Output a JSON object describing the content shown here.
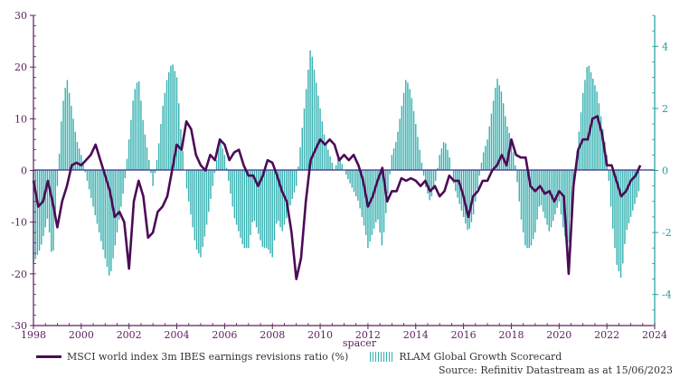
{
  "chart_data": {
    "type": "line+bar",
    "xlabel": "spacer",
    "x_ticks": [
      "1998",
      "2000",
      "2002",
      "2004",
      "2006",
      "2008",
      "2010",
      "2012",
      "2014",
      "2016",
      "2018",
      "2020",
      "2022",
      "2024"
    ],
    "x_range": [
      1998.0,
      2024.0
    ],
    "left_axis": {
      "range": [
        -30,
        30
      ],
      "ticks": [
        "30",
        "20",
        "10",
        "0",
        "-10",
        "-20",
        "-30"
      ]
    },
    "right_axis": {
      "range": [
        -5,
        5
      ],
      "ticks": [
        "4",
        "2",
        "0",
        "-2",
        "-4"
      ]
    },
    "series": [
      {
        "name": "MSCI world index 3m IBES earnings revisions ratio (%)",
        "axis": "left",
        "style": "line",
        "color": "#4b0b56",
        "points": [
          [
            1998.0,
            -2
          ],
          [
            1998.2,
            -7
          ],
          [
            1998.4,
            -6
          ],
          [
            1998.6,
            -2
          ],
          [
            1998.8,
            -6
          ],
          [
            1999.0,
            -11
          ],
          [
            1999.2,
            -6
          ],
          [
            1999.4,
            -3
          ],
          [
            1999.6,
            1
          ],
          [
            1999.8,
            1.5
          ],
          [
            2000.0,
            1
          ],
          [
            2000.2,
            2
          ],
          [
            2000.4,
            3
          ],
          [
            2000.6,
            5
          ],
          [
            2000.8,
            2
          ],
          [
            2001.0,
            -1
          ],
          [
            2001.2,
            -4
          ],
          [
            2001.4,
            -9
          ],
          [
            2001.6,
            -8
          ],
          [
            2001.8,
            -10
          ],
          [
            2002.0,
            -19
          ],
          [
            2002.2,
            -6
          ],
          [
            2002.4,
            -2
          ],
          [
            2002.6,
            -5
          ],
          [
            2002.8,
            -13
          ],
          [
            2003.0,
            -12
          ],
          [
            2003.2,
            -8
          ],
          [
            2003.4,
            -7
          ],
          [
            2003.6,
            -5
          ],
          [
            2003.8,
            0
          ],
          [
            2004.0,
            5
          ],
          [
            2004.2,
            4
          ],
          [
            2004.4,
            9.5
          ],
          [
            2004.6,
            8
          ],
          [
            2004.8,
            3
          ],
          [
            2005.0,
            1
          ],
          [
            2005.2,
            0
          ],
          [
            2005.4,
            3
          ],
          [
            2005.6,
            2
          ],
          [
            2005.8,
            6
          ],
          [
            2006.0,
            5
          ],
          [
            2006.2,
            2
          ],
          [
            2006.4,
            3.5
          ],
          [
            2006.6,
            4
          ],
          [
            2006.8,
            1
          ],
          [
            2007.0,
            -1
          ],
          [
            2007.2,
            -1
          ],
          [
            2007.4,
            -3
          ],
          [
            2007.6,
            -1
          ],
          [
            2007.8,
            2
          ],
          [
            2008.0,
            1.5
          ],
          [
            2008.2,
            -1
          ],
          [
            2008.4,
            -4
          ],
          [
            2008.6,
            -6
          ],
          [
            2008.8,
            -12
          ],
          [
            2009.0,
            -21
          ],
          [
            2009.2,
            -17
          ],
          [
            2009.4,
            -6
          ],
          [
            2009.6,
            2
          ],
          [
            2009.8,
            4
          ],
          [
            2010.0,
            6
          ],
          [
            2010.2,
            5
          ],
          [
            2010.4,
            6
          ],
          [
            2010.6,
            5
          ],
          [
            2010.8,
            2
          ],
          [
            2011.0,
            3
          ],
          [
            2011.2,
            2
          ],
          [
            2011.4,
            3
          ],
          [
            2011.6,
            1
          ],
          [
            2011.8,
            -2
          ],
          [
            2012.0,
            -7
          ],
          [
            2012.2,
            -5
          ],
          [
            2012.4,
            -2
          ],
          [
            2012.6,
            0.5
          ],
          [
            2012.8,
            -6
          ],
          [
            2013.0,
            -4
          ],
          [
            2013.2,
            -4
          ],
          [
            2013.4,
            -1.5
          ],
          [
            2013.6,
            -2
          ],
          [
            2013.8,
            -1.5
          ],
          [
            2014.0,
            -2
          ],
          [
            2014.2,
            -3
          ],
          [
            2014.4,
            -2
          ],
          [
            2014.6,
            -4
          ],
          [
            2014.8,
            -3
          ],
          [
            2015.0,
            -5
          ],
          [
            2015.2,
            -4
          ],
          [
            2015.4,
            -1
          ],
          [
            2015.6,
            -2
          ],
          [
            2015.8,
            -2
          ],
          [
            2016.0,
            -5
          ],
          [
            2016.2,
            -9
          ],
          [
            2016.4,
            -5
          ],
          [
            2016.6,
            -4
          ],
          [
            2016.8,
            -2
          ],
          [
            2017.0,
            -2
          ],
          [
            2017.2,
            0
          ],
          [
            2017.4,
            1
          ],
          [
            2017.6,
            3
          ],
          [
            2017.8,
            1
          ],
          [
            2018.0,
            6
          ],
          [
            2018.2,
            3
          ],
          [
            2018.4,
            2.5
          ],
          [
            2018.6,
            2.5
          ],
          [
            2018.8,
            -3
          ],
          [
            2019.0,
            -4
          ],
          [
            2019.2,
            -3
          ],
          [
            2019.4,
            -4.5
          ],
          [
            2019.6,
            -4
          ],
          [
            2019.8,
            -6
          ],
          [
            2020.0,
            -4
          ],
          [
            2020.2,
            -5
          ],
          [
            2020.4,
            -20
          ],
          [
            2020.6,
            -3
          ],
          [
            2020.8,
            4
          ],
          [
            2021.0,
            6
          ],
          [
            2021.2,
            6
          ],
          [
            2021.4,
            10
          ],
          [
            2021.6,
            10.5
          ],
          [
            2021.8,
            7
          ],
          [
            2022.0,
            1
          ],
          [
            2022.2,
            1
          ],
          [
            2022.4,
            -2
          ],
          [
            2022.6,
            -5
          ],
          [
            2022.8,
            -4
          ],
          [
            2023.0,
            -2
          ],
          [
            2023.2,
            -1
          ],
          [
            2023.4,
            1
          ]
        ]
      },
      {
        "name": "RLAM Global Growth Scorecard",
        "axis": "right",
        "style": "bars",
        "color": "#35b0b0",
        "points": [
          [
            1998.0,
            -3
          ],
          [
            1998.3,
            -2.5
          ],
          [
            1998.6,
            -1.5
          ],
          [
            1998.8,
            -3
          ],
          [
            1999.0,
            -0.5
          ],
          [
            1999.2,
            2
          ],
          [
            1999.4,
            3
          ],
          [
            1999.6,
            2
          ],
          [
            1999.8,
            1
          ],
          [
            2000.0,
            0.5
          ],
          [
            2000.3,
            -0.5
          ],
          [
            2000.6,
            -1.5
          ],
          [
            2000.9,
            -2.5
          ],
          [
            2001.2,
            -3.5
          ],
          [
            2001.4,
            -2.5
          ],
          [
            2001.6,
            -1.5
          ],
          [
            2001.8,
            -0.5
          ],
          [
            2002.0,
            1
          ],
          [
            2002.2,
            2.5
          ],
          [
            2002.4,
            3
          ],
          [
            2002.6,
            1.5
          ],
          [
            2002.8,
            0.5
          ],
          [
            2003.0,
            -0.5
          ],
          [
            2003.2,
            0.5
          ],
          [
            2003.4,
            2
          ],
          [
            2003.6,
            3
          ],
          [
            2003.8,
            3.5
          ],
          [
            2004.0,
            3
          ],
          [
            2004.2,
            1
          ],
          [
            2004.4,
            -0.5
          ],
          [
            2004.6,
            -1.5
          ],
          [
            2004.8,
            -2.5
          ],
          [
            2005.0,
            -2.8
          ],
          [
            2005.2,
            -2
          ],
          [
            2005.4,
            -1
          ],
          [
            2005.6,
            0
          ],
          [
            2005.8,
            1
          ],
          [
            2006.0,
            0.5
          ],
          [
            2006.2,
            -0.5
          ],
          [
            2006.4,
            -1.5
          ],
          [
            2006.6,
            -2
          ],
          [
            2006.8,
            -2.5
          ],
          [
            2007.0,
            -2.5
          ],
          [
            2007.2,
            -1.5
          ],
          [
            2007.4,
            -2
          ],
          [
            2007.6,
            -2.5
          ],
          [
            2007.8,
            -2.5
          ],
          [
            2008.0,
            -2.8
          ],
          [
            2008.2,
            -1.5
          ],
          [
            2008.4,
            -2
          ],
          [
            2008.6,
            -1.5
          ],
          [
            2008.8,
            -1
          ],
          [
            2009.0,
            -0.5
          ],
          [
            2009.2,
            1
          ],
          [
            2009.4,
            2.5
          ],
          [
            2009.6,
            4
          ],
          [
            2009.8,
            3
          ],
          [
            2010.0,
            2
          ],
          [
            2010.2,
            1
          ],
          [
            2010.4,
            0.5
          ],
          [
            2010.6,
            0
          ],
          [
            2010.8,
            0.5
          ],
          [
            2011.0,
            0
          ],
          [
            2011.3,
            -0.5
          ],
          [
            2011.6,
            -1
          ],
          [
            2011.9,
            -2
          ],
          [
            2012.0,
            -2.5
          ],
          [
            2012.2,
            -2
          ],
          [
            2012.4,
            -1.5
          ],
          [
            2012.6,
            -2.5
          ],
          [
            2012.8,
            -1
          ],
          [
            2013.0,
            0.5
          ],
          [
            2013.2,
            1
          ],
          [
            2013.4,
            2
          ],
          [
            2013.6,
            3
          ],
          [
            2013.8,
            2.5
          ],
          [
            2014.0,
            1.5
          ],
          [
            2014.2,
            0.5
          ],
          [
            2014.4,
            -0.5
          ],
          [
            2014.6,
            -1
          ],
          [
            2014.8,
            -0.5
          ],
          [
            2015.0,
            0.5
          ],
          [
            2015.2,
            1
          ],
          [
            2015.4,
            0.5
          ],
          [
            2015.6,
            -0.5
          ],
          [
            2015.8,
            -1
          ],
          [
            2016.0,
            -1.5
          ],
          [
            2016.2,
            -2
          ],
          [
            2016.4,
            -1.5
          ],
          [
            2016.6,
            -0.5
          ],
          [
            2016.8,
            0.5
          ],
          [
            2017.0,
            1
          ],
          [
            2017.2,
            2
          ],
          [
            2017.4,
            3
          ],
          [
            2017.6,
            2.5
          ],
          [
            2017.8,
            1.5
          ],
          [
            2018.0,
            1
          ],
          [
            2018.2,
            0
          ],
          [
            2018.4,
            -1.5
          ],
          [
            2018.6,
            -2.5
          ],
          [
            2018.8,
            -2.5
          ],
          [
            2019.0,
            -2
          ],
          [
            2019.2,
            -1
          ],
          [
            2019.4,
            -1.5
          ],
          [
            2019.6,
            -2
          ],
          [
            2019.8,
            -1.5
          ],
          [
            2020.0,
            -1
          ],
          [
            2020.2,
            -2
          ],
          [
            2020.4,
            -2.5
          ],
          [
            2020.6,
            -0.5
          ],
          [
            2020.8,
            1
          ],
          [
            2021.0,
            2.5
          ],
          [
            2021.2,
            3.5
          ],
          [
            2021.4,
            3
          ],
          [
            2021.6,
            2.5
          ],
          [
            2021.8,
            1.5
          ],
          [
            2022.0,
            0.5
          ],
          [
            2022.2,
            -1.5
          ],
          [
            2022.4,
            -3
          ],
          [
            2022.6,
            -3.5
          ],
          [
            2022.8,
            -2
          ],
          [
            2023.0,
            -1.5
          ],
          [
            2023.2,
            -1
          ],
          [
            2023.4,
            -0.5
          ]
        ]
      }
    ],
    "legend_position": "bottom-left",
    "source": "Source: Refinitiv Datastream as at 15/06/2023"
  }
}
